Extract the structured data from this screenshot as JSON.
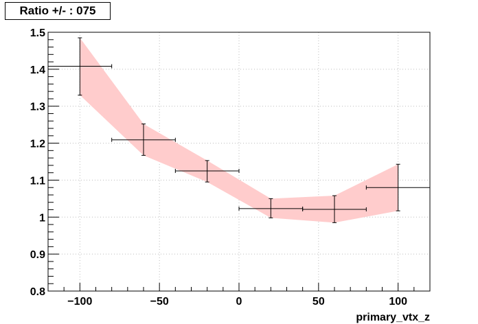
{
  "title": "Ratio +/- : 075",
  "chart_data": {
    "type": "scatter",
    "title": "Ratio +/- : 075",
    "xlabel": "primary_vtx_z",
    "ylabel": "",
    "xlim": [
      -120,
      120
    ],
    "ylim": [
      0.8,
      1.5
    ],
    "grid": true,
    "x_ticks": [
      -100,
      -50,
      0,
      50,
      100
    ],
    "x_tick_labels": [
      "−100",
      "−50",
      "0",
      "50",
      "100"
    ],
    "y_ticks": [
      0.8,
      0.9,
      1.0,
      1.1,
      1.2,
      1.3,
      1.4,
      1.5
    ],
    "y_tick_labels": [
      "0.8",
      "0.9",
      "1",
      "1.1",
      "1.2",
      "1.3",
      "1.4",
      "1.5"
    ],
    "band_color": "#ffcccc",
    "marker_color": "#000000",
    "series": [
      {
        "points": [
          {
            "x": -100,
            "y": 1.408,
            "xerr_low": 20,
            "xerr_high": 20,
            "yerr_low": 0.078,
            "yerr_high": 0.077
          },
          {
            "x": -60,
            "y": 1.209,
            "xerr_low": 20,
            "xerr_high": 20,
            "yerr_low": 0.042,
            "yerr_high": 0.043
          },
          {
            "x": -20,
            "y": 1.125,
            "xerr_low": 20,
            "xerr_high": 20,
            "yerr_low": 0.03,
            "yerr_high": 0.028
          },
          {
            "x": 20,
            "y": 1.023,
            "xerr_low": 20,
            "xerr_high": 20,
            "yerr_low": 0.025,
            "yerr_high": 0.027
          },
          {
            "x": 60,
            "y": 1.021,
            "xerr_low": 20,
            "xerr_high": 20,
            "yerr_low": 0.036,
            "yerr_high": 0.037
          },
          {
            "x": 100,
            "y": 1.08,
            "xerr_low": 20,
            "xerr_high": 20,
            "yerr_low": 0.063,
            "yerr_high": 0.063
          }
        ]
      }
    ],
    "band": {
      "x": [
        -100,
        -60,
        -20,
        20,
        60,
        100
      ],
      "upper": [
        1.485,
        1.252,
        1.153,
        1.05,
        1.058,
        1.143
      ],
      "lower": [
        1.33,
        1.167,
        1.095,
        0.998,
        0.985,
        1.017
      ]
    }
  }
}
